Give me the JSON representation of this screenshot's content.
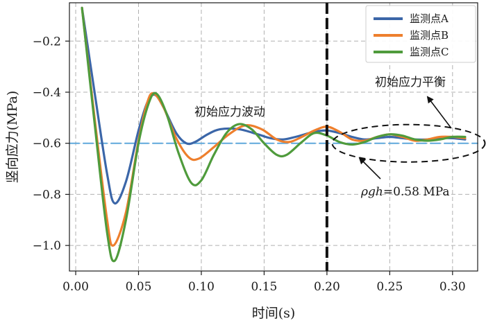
{
  "chart_data": {
    "type": "line",
    "xlabel": "时间(s)",
    "ylabel": "竖向应力(MPa)",
    "xlim": [
      -0.005,
      0.32
    ],
    "ylim": [
      -1.1,
      -0.05
    ],
    "xticks": [
      0.0,
      0.05,
      0.1,
      0.15,
      0.2,
      0.25,
      0.3
    ],
    "xtick_labels": [
      "0.00",
      "0.05",
      "0.10",
      "0.15",
      "0.20",
      "0.25",
      "0.30"
    ],
    "yticks": [
      -0.2,
      -0.4,
      -0.6,
      -0.8,
      -1.0
    ],
    "ytick_labels": [
      "−0.2",
      "−0.4",
      "−0.6",
      "−0.8",
      "−1.0"
    ],
    "grid": true,
    "legend_position": "top-right",
    "series": [
      {
        "name": "监测点A",
        "color": "#3b66a8",
        "x": [
          0.005,
          0.015,
          0.025,
          0.031,
          0.04,
          0.05,
          0.057,
          0.063,
          0.07,
          0.08,
          0.088,
          0.095,
          0.105,
          0.115,
          0.13,
          0.145,
          0.155,
          0.165,
          0.175,
          0.19,
          0.2,
          0.21,
          0.22,
          0.23,
          0.24,
          0.25,
          0.26,
          0.27,
          0.28,
          0.29,
          0.3,
          0.31
        ],
        "values": [
          -0.07,
          -0.4,
          -0.72,
          -0.835,
          -0.75,
          -0.55,
          -0.44,
          -0.41,
          -0.46,
          -0.56,
          -0.6,
          -0.595,
          -0.565,
          -0.545,
          -0.545,
          -0.565,
          -0.58,
          -0.585,
          -0.575,
          -0.555,
          -0.55,
          -0.56,
          -0.575,
          -0.585,
          -0.58,
          -0.575,
          -0.58,
          -0.585,
          -0.585,
          -0.58,
          -0.58,
          -0.585
        ]
      },
      {
        "name": "监测点B",
        "color": "#ee7f2d",
        "x": [
          0.005,
          0.015,
          0.025,
          0.03,
          0.04,
          0.05,
          0.057,
          0.062,
          0.07,
          0.08,
          0.09,
          0.098,
          0.11,
          0.122,
          0.135,
          0.148,
          0.16,
          0.17,
          0.18,
          0.19,
          0.2,
          0.21,
          0.22,
          0.23,
          0.24,
          0.25,
          0.26,
          0.27,
          0.28,
          0.29,
          0.3,
          0.31
        ],
        "values": [
          -0.07,
          -0.5,
          -0.9,
          -1.0,
          -0.87,
          -0.59,
          -0.44,
          -0.405,
          -0.46,
          -0.58,
          -0.655,
          -0.66,
          -0.615,
          -0.565,
          -0.53,
          -0.545,
          -0.585,
          -0.595,
          -0.575,
          -0.55,
          -0.535,
          -0.555,
          -0.585,
          -0.59,
          -0.575,
          -0.565,
          -0.575,
          -0.59,
          -0.585,
          -0.575,
          -0.575,
          -0.58
        ]
      },
      {
        "name": "监测点C",
        "color": "#4f9b3c",
        "x": [
          0.005,
          0.015,
          0.025,
          0.031,
          0.04,
          0.05,
          0.058,
          0.064,
          0.072,
          0.082,
          0.092,
          0.1,
          0.11,
          0.12,
          0.13,
          0.14,
          0.15,
          0.16,
          0.168,
          0.18,
          0.19,
          0.2,
          0.21,
          0.22,
          0.23,
          0.24,
          0.25,
          0.26,
          0.27,
          0.28,
          0.29,
          0.3,
          0.31
        ],
        "values": [
          -0.07,
          -0.52,
          -0.95,
          -1.06,
          -0.9,
          -0.6,
          -0.445,
          -0.405,
          -0.48,
          -0.64,
          -0.755,
          -0.745,
          -0.645,
          -0.56,
          -0.525,
          -0.545,
          -0.6,
          -0.645,
          -0.645,
          -0.595,
          -0.56,
          -0.57,
          -0.595,
          -0.605,
          -0.595,
          -0.575,
          -0.565,
          -0.57,
          -0.585,
          -0.59,
          -0.585,
          -0.575,
          -0.575
        ]
      },
      {
        "name": "",
        "color": "#5fa8dc",
        "style": "dashed",
        "x": [
          -0.005,
          0.32
        ],
        "values": [
          -0.6,
          -0.6
        ]
      }
    ],
    "vlines": [
      {
        "x": 0.2,
        "color": "#111111",
        "style": "dashed"
      }
    ],
    "annotations": {
      "fluctuation_text": "初始应力波动",
      "balance_text": "初始应力平衡",
      "rho_symbol": "ρgh",
      "rho_value": "=0.58 MPa"
    }
  }
}
